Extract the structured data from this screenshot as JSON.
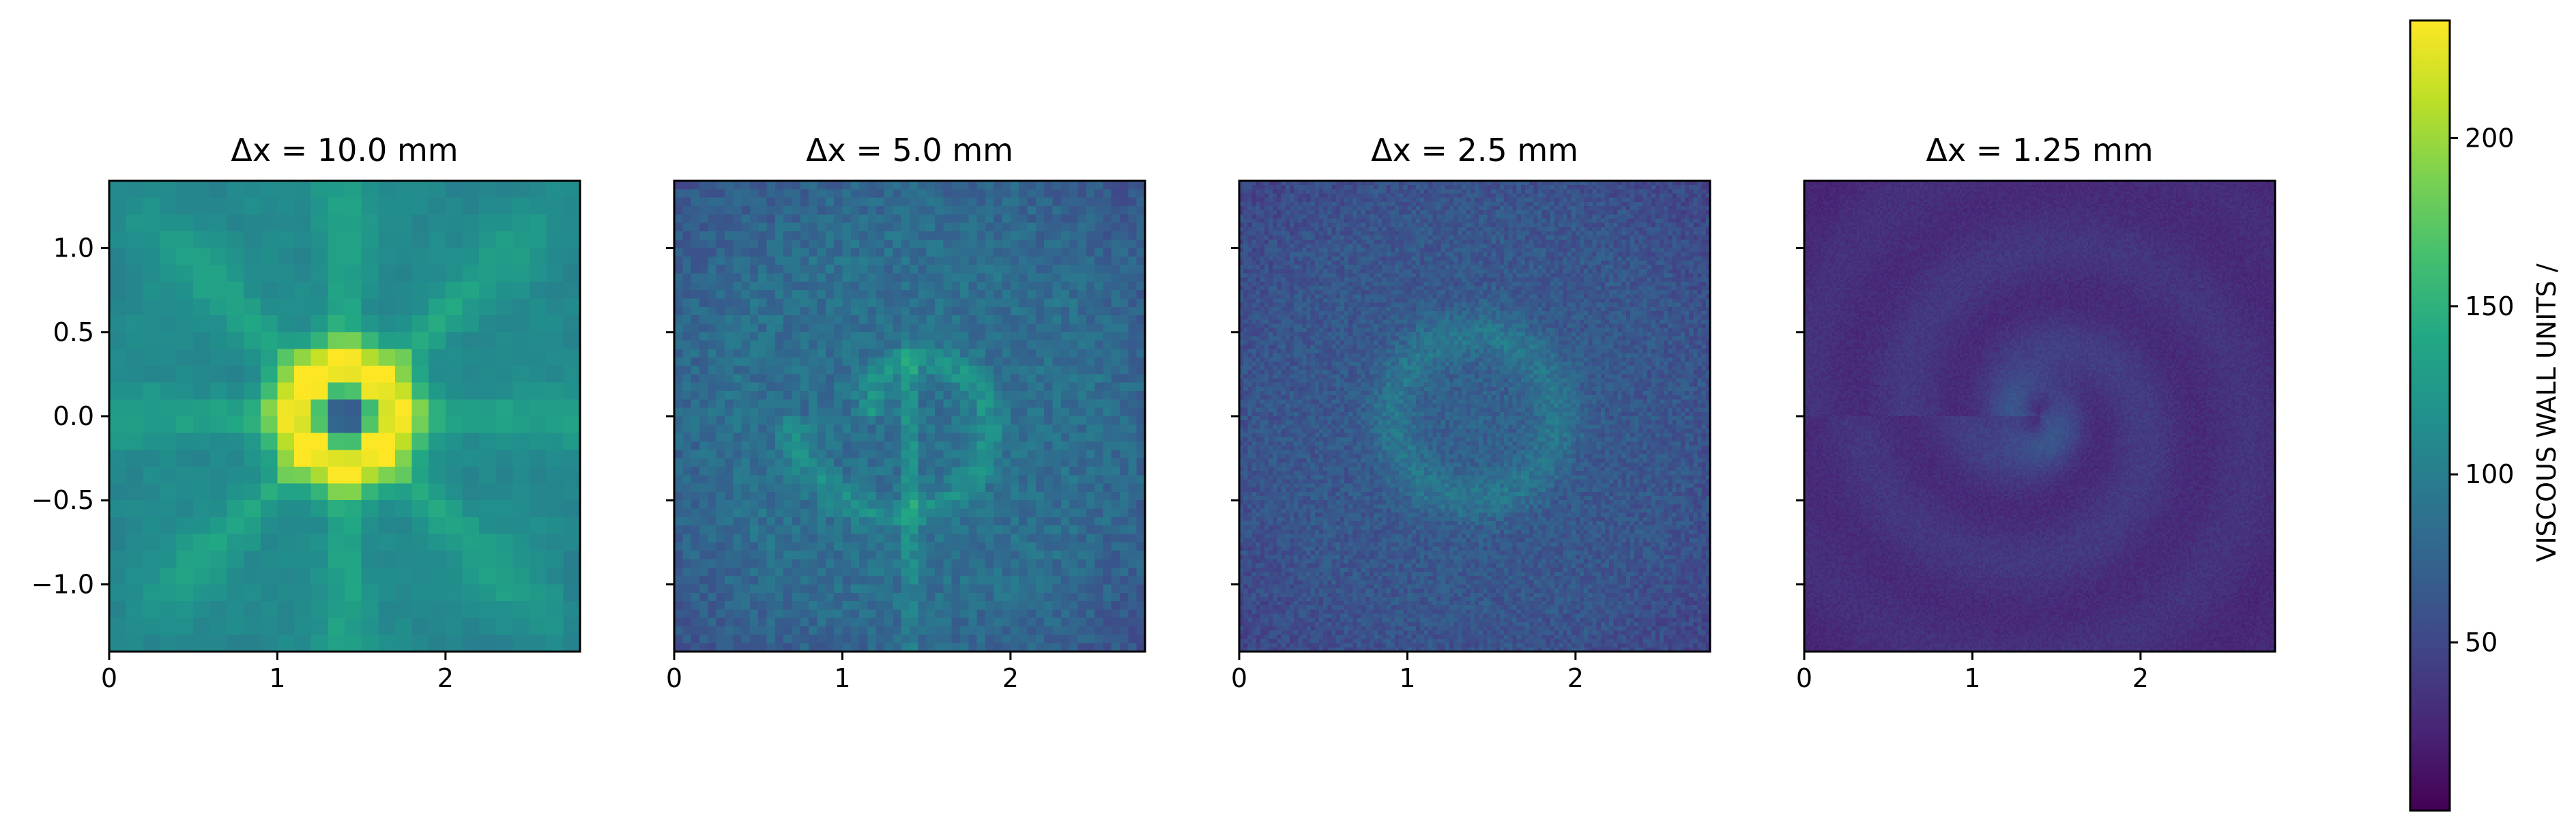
{
  "chart_data": {
    "type": "heatmap",
    "colormap": "viridis",
    "shared_y_axis": true,
    "panels": [
      {
        "title": "Δx = 10.0 mm",
        "grid": [
          28,
          28
        ],
        "xlim": [
          0,
          2.8
        ],
        "ylim": [
          -1.4,
          1.4
        ],
        "x_ticks": [
          0,
          1,
          2
        ],
        "x_tick_labels": [
          "0",
          "1",
          "2"
        ],
        "y_ticks": [
          1.0,
          0.5,
          0.0,
          -0.5,
          -1.0
        ],
        "y_tick_labels": [
          "1.0",
          "0.5",
          "0.0",
          "−0.5",
          "−1.0"
        ],
        "pattern": "symmetric star: radial spokes, bright ring around low-value core",
        "center_value": 75,
        "peak_value": 232,
        "edge_value": 110
      },
      {
        "title": "Δx = 5.0 mm",
        "grid": [
          56,
          56
        ],
        "xlim": [
          0,
          2.8
        ],
        "ylim": [
          -1.4,
          1.4
        ],
        "x_ticks": [
          0,
          1,
          2
        ],
        "x_tick_labels": [
          "0",
          "1",
          "2"
        ],
        "pattern": "spiral arm with vertical streak",
        "background_value": 85,
        "peak_value": 180
      },
      {
        "title": "Δx = 2.5 mm",
        "grid": [
          112,
          112
        ],
        "xlim": [
          0,
          2.8
        ],
        "ylim": [
          -1.4,
          1.4
        ],
        "x_ticks": [
          0,
          1,
          2
        ],
        "x_tick_labels": [
          "0",
          "1",
          "2"
        ],
        "pattern": "turbulent field with faint ring",
        "background_value": 60,
        "peak_value": 100
      },
      {
        "title": "Δx = 1.25 mm",
        "grid": [
          224,
          224
        ],
        "xlim": [
          0,
          2.8
        ],
        "ylim": [
          -1.4,
          1.4
        ],
        "x_ticks": [
          0,
          1,
          2
        ],
        "x_tick_labels": [
          "0",
          "1",
          "2"
        ],
        "pattern": "concentric spiral rings, low amplitude",
        "background_value": 28,
        "peak_value": 70
      }
    ],
    "colorbar": {
      "label": "VISCOUS WALL UNITS /",
      "vmin": 0,
      "vmax": 235,
      "ticks": [
        50,
        100,
        150,
        200
      ],
      "tick_labels": [
        "50",
        "100",
        "150",
        "200"
      ],
      "placement": "right"
    }
  }
}
